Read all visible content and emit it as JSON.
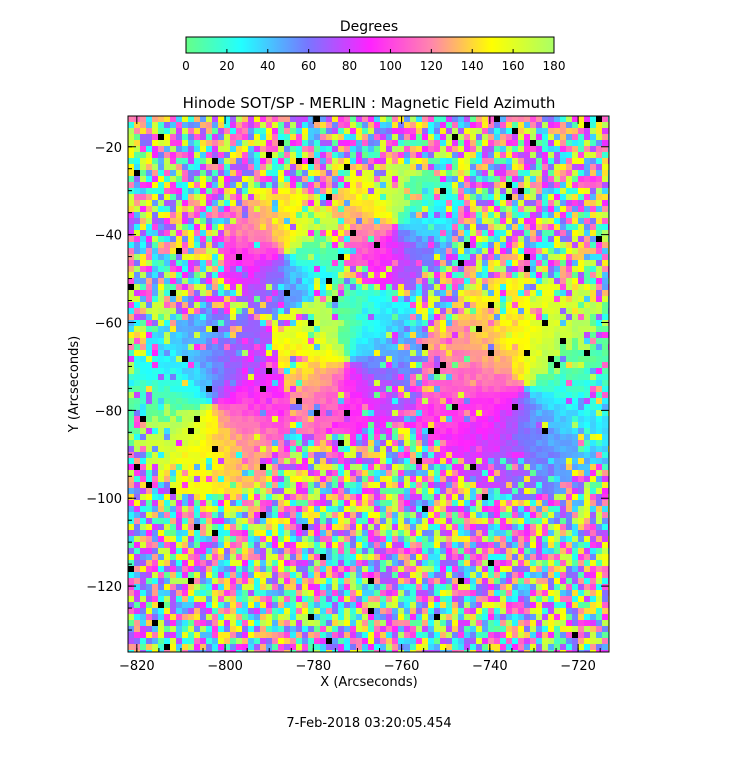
{
  "colorbar": {
    "title": "Degrees",
    "tick_labels": [
      "0",
      "20",
      "40",
      "60",
      "80",
      "100",
      "120",
      "140",
      "160",
      "180"
    ],
    "range": [
      0,
      180
    ],
    "stops": [
      "#66ff88",
      "#22ffff",
      "#7777ff",
      "#ff22ff",
      "#ff88aa",
      "#ffff00",
      "#aaff66"
    ]
  },
  "plot": {
    "title": "Hinode SOT/SP - MERLIN : Magnetic Field Azimuth",
    "xlabel": "X (Arcseconds)",
    "ylabel": "Y (Arcseconds)",
    "x_ticks": [
      "-820",
      "-800",
      "-780",
      "-760",
      "-740",
      "-720"
    ],
    "y_ticks": [
      "-20",
      "-40",
      "-60",
      "-80",
      "-100",
      "-120"
    ],
    "x_range": [
      -822,
      -713
    ],
    "y_range": [
      -135,
      -13
    ]
  },
  "footer": {
    "timestamp": "7-Feb-2018 03:20:05.454"
  }
}
